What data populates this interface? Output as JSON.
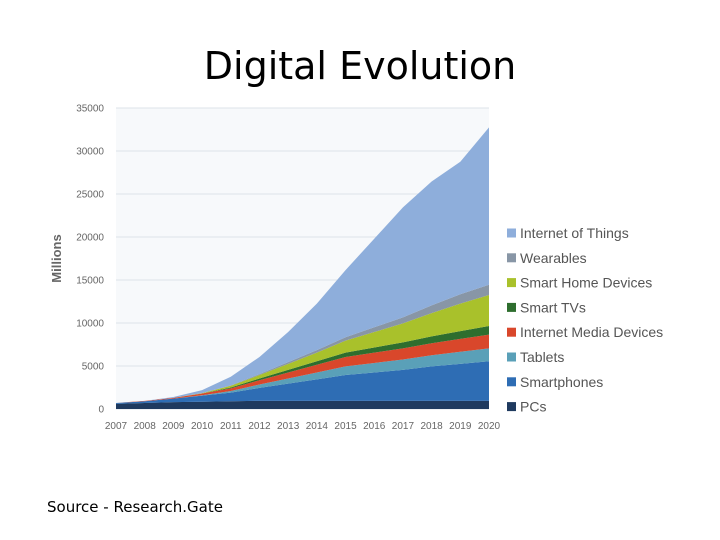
{
  "slide": {
    "title": "Digital Evolution",
    "source": "Source - Research.Gate"
  },
  "chart_data": {
    "type": "area",
    "stacked": true,
    "title": "",
    "xlabel": "",
    "ylabel": "Millions",
    "ylim": [
      0,
      35000
    ],
    "yticks": [
      0,
      5000,
      10000,
      15000,
      20000,
      25000,
      30000,
      35000
    ],
    "grid": true,
    "legend_position": "right",
    "x": [
      "2007",
      "2008",
      "2009",
      "2010",
      "2011",
      "2012",
      "2013",
      "2014",
      "2015",
      "2016",
      "2017",
      "2018",
      "2019",
      "2020"
    ],
    "series": [
      {
        "name": "PCs",
        "color": "#1f3a5f",
        "values": [
          600,
          700,
          800,
          850,
          900,
          950,
          950,
          950,
          950,
          950,
          950,
          950,
          950,
          950
        ]
      },
      {
        "name": "Smartphones",
        "color": "#2e6db4",
        "values": [
          100,
          200,
          400,
          700,
          1000,
          1500,
          2000,
          2500,
          3000,
          3300,
          3600,
          4000,
          4300,
          4600
        ]
      },
      {
        "name": "Tablets",
        "color": "#5aa0b8",
        "values": [
          0,
          0,
          0,
          50,
          200,
          400,
          600,
          800,
          1000,
          1100,
          1200,
          1300,
          1400,
          1500
        ]
      },
      {
        "name": "Internet Media Devices",
        "color": "#d9472b",
        "values": [
          0,
          50,
          100,
          200,
          300,
          500,
          700,
          900,
          1100,
          1200,
          1300,
          1400,
          1500,
          1600
        ]
      },
      {
        "name": "Smart TVs",
        "color": "#2e6e2e",
        "values": [
          0,
          0,
          0,
          0,
          100,
          200,
          300,
          400,
          500,
          600,
          700,
          800,
          900,
          1000
        ]
      },
      {
        "name": "Smart Home Devices",
        "color": "#a9c12b",
        "values": [
          0,
          0,
          0,
          50,
          200,
          400,
          700,
          1000,
          1400,
          1800,
          2200,
          2700,
          3200,
          3600
        ]
      },
      {
        "name": "Wearables",
        "color": "#8896a6",
        "values": [
          0,
          0,
          0,
          0,
          50,
          100,
          200,
          300,
          400,
          550,
          700,
          900,
          1100,
          1200
        ]
      },
      {
        "name": "Internet of Things",
        "color": "#8eaedb",
        "values": [
          0,
          0,
          100,
          350,
          1000,
          2000,
          3500,
          5400,
          7800,
          10300,
          12800,
          14400,
          15400,
          18300
        ]
      }
    ]
  }
}
